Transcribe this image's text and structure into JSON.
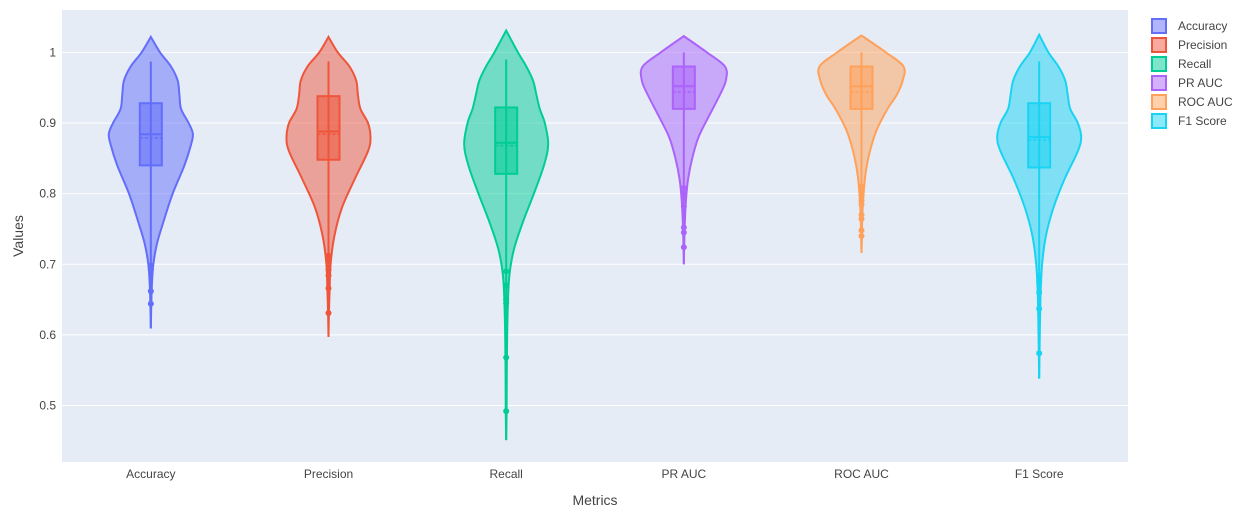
{
  "chart_data": {
    "type": "violin",
    "xlabel": "Metrics",
    "ylabel": "Values",
    "yticks": [
      0.5,
      0.6,
      0.7,
      0.8,
      0.9,
      1
    ],
    "ytick_labels": [
      "0.5",
      "0.6",
      "0.7",
      "0.8",
      "0.9",
      "1"
    ],
    "ylim": [
      0.42,
      1.06
    ],
    "grid": true,
    "legend_position": "top-right",
    "series": [
      {
        "name": "Accuracy",
        "color": "#636efa",
        "violin_min": 0.609,
        "violin_max": 1.022,
        "whisker_min": 0.7,
        "whisker_max": 0.987,
        "q1": 0.84,
        "median": 0.884,
        "mean": 0.879,
        "q3": 0.928,
        "outliers": [
          0.698,
          0.693,
          0.662,
          0.644
        ],
        "density": [
          [
            0.609,
            0.0
          ],
          [
            0.64,
            0.01
          ],
          [
            0.67,
            0.025
          ],
          [
            0.7,
            0.06
          ],
          [
            0.73,
            0.15
          ],
          [
            0.76,
            0.3
          ],
          [
            0.8,
            0.52
          ],
          [
            0.84,
            0.8
          ],
          [
            0.87,
            0.96
          ],
          [
            0.885,
            1.0
          ],
          [
            0.9,
            0.9
          ],
          [
            0.92,
            0.72
          ],
          [
            0.94,
            0.68
          ],
          [
            0.96,
            0.64
          ],
          [
            0.98,
            0.48
          ],
          [
            1.0,
            0.22
          ],
          [
            1.022,
            0.0
          ]
        ]
      },
      {
        "name": "Precision",
        "color": "#ef553b",
        "violin_min": 0.597,
        "violin_max": 1.022,
        "whisker_min": 0.7,
        "whisker_max": 0.987,
        "q1": 0.848,
        "median": 0.888,
        "mean": 0.884,
        "q3": 0.938,
        "outliers": [
          0.712,
          0.705,
          0.692,
          0.684,
          0.666,
          0.631
        ],
        "density": [
          [
            0.597,
            0.0
          ],
          [
            0.63,
            0.01
          ],
          [
            0.66,
            0.025
          ],
          [
            0.7,
            0.05
          ],
          [
            0.74,
            0.14
          ],
          [
            0.78,
            0.32
          ],
          [
            0.82,
            0.62
          ],
          [
            0.86,
            0.94
          ],
          [
            0.88,
            1.0
          ],
          [
            0.9,
            0.94
          ],
          [
            0.92,
            0.76
          ],
          [
            0.94,
            0.7
          ],
          [
            0.96,
            0.66
          ],
          [
            0.98,
            0.5
          ],
          [
            1.0,
            0.22
          ],
          [
            1.022,
            0.0
          ]
        ]
      },
      {
        "name": "Recall",
        "color": "#00cc96",
        "violin_min": 0.451,
        "violin_max": 1.031,
        "whisker_min": 0.69,
        "whisker_max": 0.99,
        "q1": 0.828,
        "median": 0.872,
        "mean": 0.868,
        "q3": 0.922,
        "outliers": [
          0.69,
          0.67,
          0.65,
          0.645,
          0.568,
          0.492
        ],
        "density": [
          [
            0.451,
            0.0
          ],
          [
            0.49,
            0.01
          ],
          [
            0.55,
            0.015
          ],
          [
            0.62,
            0.03
          ],
          [
            0.68,
            0.07
          ],
          [
            0.72,
            0.18
          ],
          [
            0.76,
            0.4
          ],
          [
            0.8,
            0.66
          ],
          [
            0.84,
            0.9
          ],
          [
            0.87,
            1.0
          ],
          [
            0.9,
            0.92
          ],
          [
            0.92,
            0.8
          ],
          [
            0.94,
            0.72
          ],
          [
            0.96,
            0.64
          ],
          [
            0.98,
            0.48
          ],
          [
            1.0,
            0.28
          ],
          [
            1.031,
            0.0
          ]
        ]
      },
      {
        "name": "PR AUC",
        "color": "#ab63fa",
        "violin_min": 0.7,
        "violin_max": 1.023,
        "whisker_min": 0.82,
        "whisker_max": 1.0,
        "q1": 0.92,
        "median": 0.952,
        "mean": 0.944,
        "q3": 0.98,
        "outliers": [
          0.808,
          0.8,
          0.795,
          0.782,
          0.752,
          0.745,
          0.724
        ],
        "density": [
          [
            0.7,
            0.0
          ],
          [
            0.73,
            0.01
          ],
          [
            0.76,
            0.025
          ],
          [
            0.79,
            0.05
          ],
          [
            0.82,
            0.1
          ],
          [
            0.85,
            0.2
          ],
          [
            0.88,
            0.35
          ],
          [
            0.91,
            0.6
          ],
          [
            0.94,
            0.86
          ],
          [
            0.96,
            1.0
          ],
          [
            0.98,
            0.98
          ],
          [
            1.0,
            0.55
          ],
          [
            1.023,
            0.0
          ]
        ]
      },
      {
        "name": "ROC AUC",
        "color": "#ffa15a",
        "violin_min": 0.716,
        "violin_max": 1.024,
        "whisker_min": 0.832,
        "whisker_max": 1.0,
        "q1": 0.92,
        "median": 0.952,
        "mean": 0.944,
        "q3": 0.98,
        "outliers": [
          0.81,
          0.805,
          0.8,
          0.79,
          0.785,
          0.77,
          0.764,
          0.748,
          0.74
        ],
        "density": [
          [
            0.716,
            0.0
          ],
          [
            0.74,
            0.01
          ],
          [
            0.77,
            0.02
          ],
          [
            0.8,
            0.05
          ],
          [
            0.83,
            0.1
          ],
          [
            0.86,
            0.2
          ],
          [
            0.89,
            0.36
          ],
          [
            0.92,
            0.62
          ],
          [
            0.94,
            0.84
          ],
          [
            0.96,
            0.98
          ],
          [
            0.98,
            1.0
          ],
          [
            1.0,
            0.58
          ],
          [
            1.024,
            0.0
          ]
        ]
      },
      {
        "name": "F1 Score",
        "color": "#19d3f3",
        "violin_min": 0.538,
        "violin_max": 1.025,
        "whisker_min": 0.69,
        "whisker_max": 0.987,
        "q1": 0.837,
        "median": 0.88,
        "mean": 0.876,
        "q3": 0.928,
        "outliers": [
          0.683,
          0.675,
          0.66,
          0.637,
          0.574
        ],
        "density": [
          [
            0.538,
            0.0
          ],
          [
            0.58,
            0.01
          ],
          [
            0.62,
            0.02
          ],
          [
            0.66,
            0.035
          ],
          [
            0.7,
            0.07
          ],
          [
            0.74,
            0.16
          ],
          [
            0.78,
            0.34
          ],
          [
            0.82,
            0.6
          ],
          [
            0.86,
            0.92
          ],
          [
            0.88,
            1.0
          ],
          [
            0.9,
            0.92
          ],
          [
            0.92,
            0.74
          ],
          [
            0.94,
            0.68
          ],
          [
            0.96,
            0.62
          ],
          [
            0.98,
            0.46
          ],
          [
            1.0,
            0.22
          ],
          [
            1.025,
            0.0
          ]
        ]
      }
    ]
  }
}
